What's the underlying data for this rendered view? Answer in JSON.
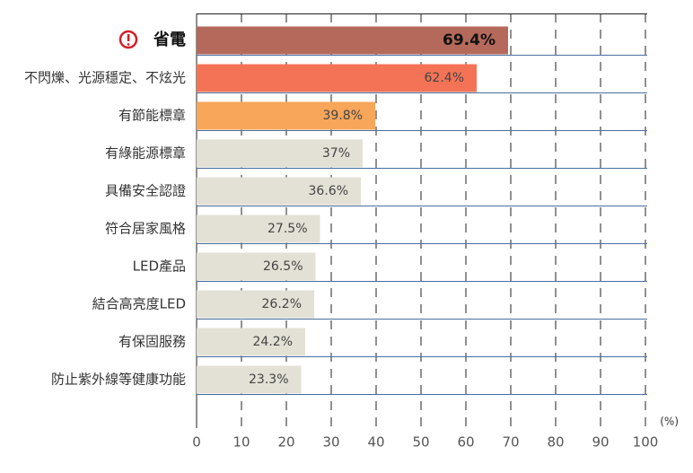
{
  "chart_data": {
    "type": "bar",
    "orientation": "horizontal",
    "categories": [
      "省電",
      "不閃爍、光源穩定、不炫光",
      "有節能標章",
      "有綠能源標章",
      "具備安全認證",
      "符合居家風格",
      "LED產品",
      "結合高亮度LED",
      "有保固服務",
      "防止紫外線等健康功能"
    ],
    "values": [
      69.4,
      62.4,
      39.8,
      37,
      36.6,
      27.5,
      26.5,
      26.2,
      24.2,
      23.3
    ],
    "value_labels": [
      "69.4%",
      "62.4%",
      "39.8%",
      "37%",
      "36.6%",
      "27.5%",
      "26.5%",
      "26.2%",
      "24.2%",
      "23.3%"
    ],
    "colors": [
      "#b5695b",
      "#f47356",
      "#f8a65a",
      "#e3e0d5",
      "#e3e0d5",
      "#e3e0d5",
      "#e3e0d5",
      "#e3e0d5",
      "#e3e0d5",
      "#e3e0d5"
    ],
    "xlim": [
      0,
      100
    ],
    "xticks": [
      0,
      10,
      20,
      30,
      40,
      50,
      60,
      70,
      80,
      90,
      100
    ],
    "xlabel": "(%)",
    "grid": true
  }
}
